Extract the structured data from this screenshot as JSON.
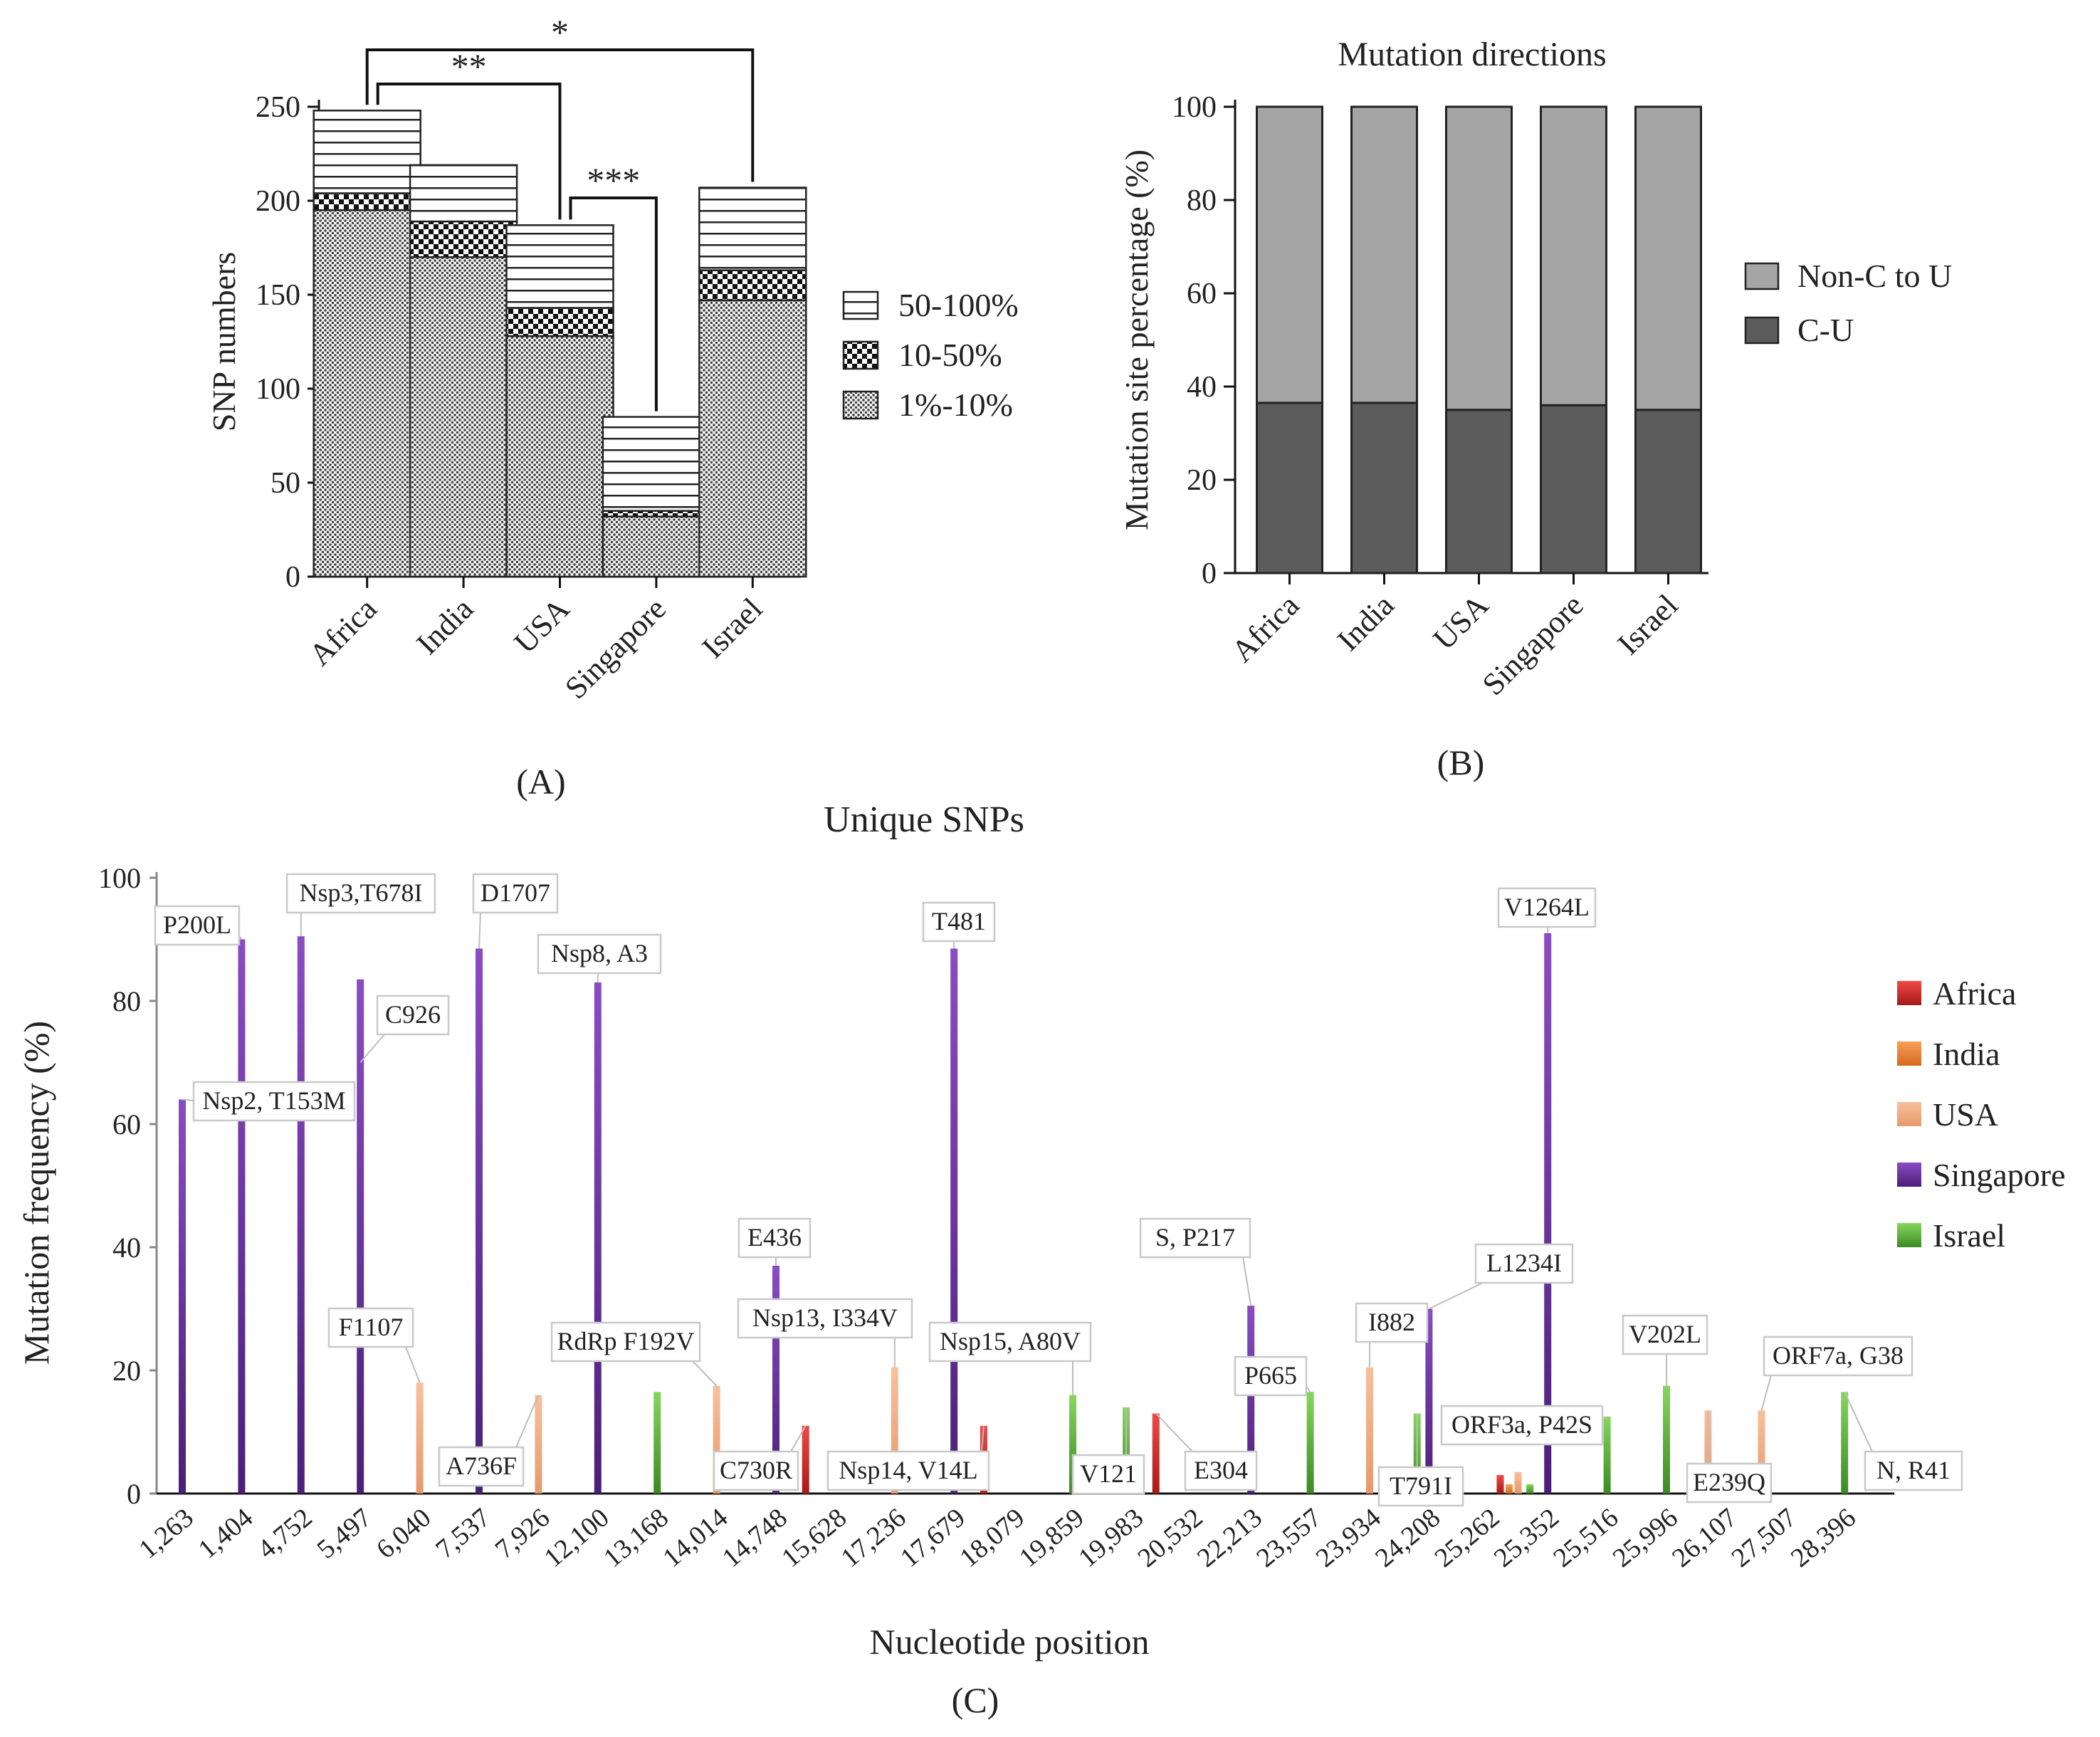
{
  "panels": [
    {
      "id": "A",
      "caption": "(A)",
      "chart_data": {
        "type": "bar",
        "stacked": true,
        "title": "",
        "ylabel": "SNP numbers",
        "xlabel": "",
        "categories": [
          "Africa",
          "India",
          "USA",
          "Singapore",
          "Israel"
        ],
        "ylim": [
          0,
          250
        ],
        "yticks": [
          0,
          50,
          100,
          150,
          200,
          250
        ],
        "series": [
          {
            "name": "1%-10%",
            "pattern": "dots",
            "values": [
              195,
              170,
              128,
              32,
              147
            ]
          },
          {
            "name": "10-50%",
            "pattern": "checker",
            "values": [
              9,
              19,
              15,
              3,
              16
            ]
          },
          {
            "name": "50-100%",
            "pattern": "stripes",
            "values": [
              44,
              30,
              44,
              50,
              44
            ]
          }
        ],
        "legend_order": [
          "50-100%",
          "10-50%",
          "1%-10%"
        ],
        "legend_position": "right",
        "significance": [
          {
            "from": "Africa",
            "to": "Israel",
            "label": "*"
          },
          {
            "from": "Africa",
            "to": "USA",
            "label": "**"
          },
          {
            "from": "USA",
            "to": "Singapore",
            "label": "***"
          }
        ]
      }
    },
    {
      "id": "B",
      "caption": "(B)",
      "chart_data": {
        "type": "bar",
        "stacked": true,
        "title": "Mutation directions",
        "ylabel": "Mutation site percentage (%)",
        "xlabel": "",
        "categories": [
          "Africa",
          "India",
          "USA",
          "Singapore",
          "Israel"
        ],
        "ylim": [
          0,
          100
        ],
        "yticks": [
          0,
          20,
          40,
          60,
          80,
          100
        ],
        "series": [
          {
            "name": "C-U",
            "color": "#5c5c5c",
            "values": [
              36.5,
              36.5,
              35,
              36,
              35
            ]
          },
          {
            "name": "Non-C to U",
            "color": "#a5a5a5",
            "values": [
              63.5,
              63.5,
              65,
              64,
              65
            ]
          }
        ],
        "legend_order": [
          "Non-C to U",
          "C-U"
        ],
        "legend_position": "right"
      }
    },
    {
      "id": "C",
      "caption": "(C)",
      "chart_data": {
        "type": "bar",
        "title": "Unique SNPs",
        "xlabel": "Nucleotide position",
        "ylabel": "Mutation frequency (%)",
        "ylim": [
          0,
          100
        ],
        "yticks": [
          0,
          20,
          40,
          60,
          80,
          100
        ],
        "categories": [
          "1,263",
          "1,404",
          "4,752",
          "5,497",
          "6,040",
          "7,537",
          "7,926",
          "12,100",
          "13,168",
          "14,014",
          "14,748",
          "15,628",
          "17,236",
          "17,679",
          "18,079",
          "19,859",
          "19,983",
          "20,532",
          "22,213",
          "23,557",
          "23,934",
          "24,208",
          "25,262",
          "25,352",
          "25,516",
          "25,996",
          "26,107",
          "27,507",
          "28,396"
        ],
        "legend_position": "right",
        "series": [
          {
            "name": "Africa",
            "color": "#e53935",
            "points": [
              {
                "x": 10.5,
                "y": 11
              },
              {
                "x": 13.5,
                "y": 11
              },
              {
                "x": 16.4,
                "y": 13
              },
              {
                "x": 22.2,
                "y": 3
              }
            ]
          },
          {
            "name": "India",
            "color": "#ef8a3a",
            "points": [
              {
                "x": 22.35,
                "y": 1.5
              }
            ]
          },
          {
            "name": "USA",
            "color": "#f2a97b",
            "points": [
              {
                "x": 4,
                "y": 18
              },
              {
                "x": 6,
                "y": 16
              },
              {
                "x": 9,
                "y": 17.5
              },
              {
                "x": 12,
                "y": 20.5
              },
              {
                "x": 20,
                "y": 20.5
              },
              {
                "x": 22.5,
                "y": 3.5
              },
              {
                "x": 25.7,
                "y": 13.5
              },
              {
                "x": 26.6,
                "y": 13.5
              }
            ]
          },
          {
            "name": "Singapore",
            "color": "#6a2fa0",
            "points": [
              {
                "x": 0,
                "y": 64
              },
              {
                "x": 1,
                "y": 90
              },
              {
                "x": 2,
                "y": 90.5
              },
              {
                "x": 3,
                "y": 83.5
              },
              {
                "x": 5,
                "y": 88.5
              },
              {
                "x": 7,
                "y": 83
              },
              {
                "x": 10,
                "y": 37
              },
              {
                "x": 13,
                "y": 88.5
              },
              {
                "x": 18,
                "y": 30.5
              },
              {
                "x": 21,
                "y": 30
              },
              {
                "x": 23,
                "y": 91
              }
            ]
          },
          {
            "name": "Israel",
            "color": "#5cb83a",
            "points": [
              {
                "x": 8,
                "y": 16.5
              },
              {
                "x": 15,
                "y": 16
              },
              {
                "x": 15.9,
                "y": 14
              },
              {
                "x": 19,
                "y": 16.5
              },
              {
                "x": 20.8,
                "y": 13
              },
              {
                "x": 22.7,
                "y": 1.5
              },
              {
                "x": 24,
                "y": 12.5
              },
              {
                "x": 25,
                "y": 17.5
              },
              {
                "x": 28,
                "y": 16.5
              }
            ]
          }
        ],
        "annotations": [
          {
            "text": "P200L",
            "x": 1,
            "y": 90
          },
          {
            "text": "Nsp3,T678I",
            "x": 2,
            "y": 90.5
          },
          {
            "text": "D1707",
            "x": 5,
            "y": 88.5
          },
          {
            "text": "Nsp8, A3",
            "x": 7,
            "y": 83
          },
          {
            "text": "C926",
            "x": 3,
            "y": 70
          },
          {
            "text": "Nsp2, T153M",
            "x": 0,
            "y": 64
          },
          {
            "text": "T481",
            "x": 13,
            "y": 88.5
          },
          {
            "text": "V1264L",
            "x": 23,
            "y": 91
          },
          {
            "text": "E436",
            "x": 10,
            "y": 37
          },
          {
            "text": "S, P217",
            "x": 18,
            "y": 30.5
          },
          {
            "text": "L1234I",
            "x": 21,
            "y": 30
          },
          {
            "text": "F1107",
            "x": 4,
            "y": 18
          },
          {
            "text": "RdRp F192V",
            "x": 9,
            "y": 17.5
          },
          {
            "text": "Nsp13, I334V",
            "x": 12,
            "y": 20.5
          },
          {
            "text": "Nsp15, A80V",
            "x": 15,
            "y": 16
          },
          {
            "text": "I882",
            "x": 20,
            "y": 20.5
          },
          {
            "text": "V202L",
            "x": 25,
            "y": 17.5
          },
          {
            "text": "ORF7a, G38",
            "x": 26.6,
            "y": 13.5
          },
          {
            "text": "P665",
            "x": 19,
            "y": 16.5
          },
          {
            "text": "ORF3a, P42S",
            "x": 24,
            "y": 12.5
          },
          {
            "text": "A736F",
            "x": 6,
            "y": 16
          },
          {
            "text": "C730R",
            "x": 10.5,
            "y": 11
          },
          {
            "text": "Nsp14, V14L",
            "x": 13.5,
            "y": 11
          },
          {
            "text": "V121",
            "x": 15.9,
            "y": 14
          },
          {
            "text": "E304",
            "x": 16.4,
            "y": 13
          },
          {
            "text": "T791I",
            "x": 20.8,
            "y": 13
          },
          {
            "text": "E239Q",
            "x": 25.7,
            "y": 13.5
          },
          {
            "text": "N, R41",
            "x": 28,
            "y": 16.5
          }
        ]
      }
    }
  ]
}
